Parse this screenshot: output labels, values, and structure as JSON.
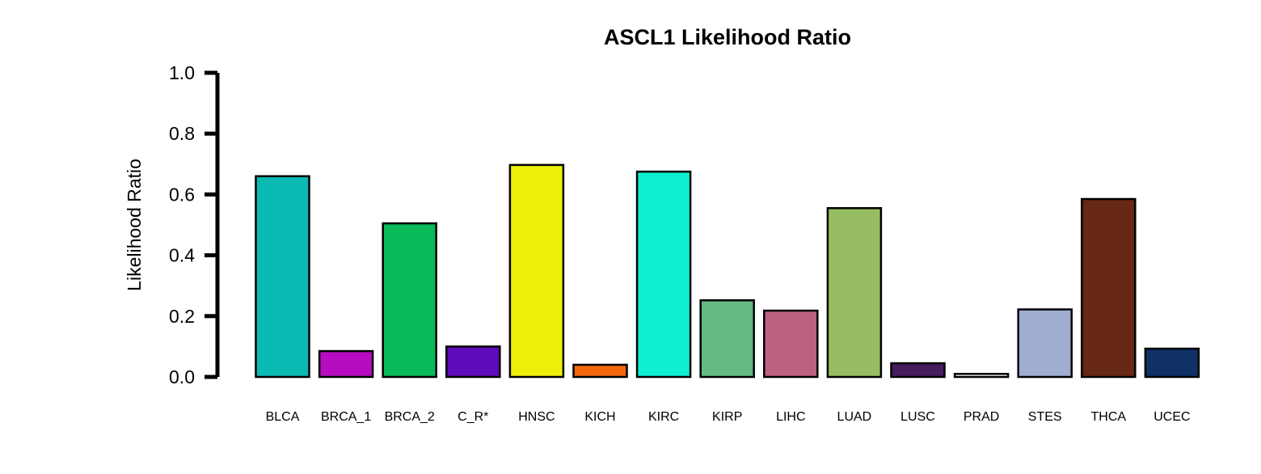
{
  "chart_data": {
    "type": "bar",
    "title": "ASCL1 Likelihood Ratio",
    "xlabel": "",
    "ylabel": "Likelihood Ratio",
    "ylim": [
      0,
      1
    ],
    "yticks": [
      "0.0",
      "0.2",
      "0.4",
      "0.6",
      "0.8",
      "1.0"
    ],
    "grid": false,
    "legend": "none",
    "categories": [
      "BLCA",
      "BRCA_1",
      "BRCA_2",
      "C_R*",
      "HNSC",
      "KICH",
      "KIRC",
      "KIRP",
      "LIHC",
      "LUAD",
      "LUSC",
      "PRAD",
      "STES",
      "THCA",
      "UCEC"
    ],
    "values": [
      0.66,
      0.085,
      0.505,
      0.1,
      0.697,
      0.04,
      0.675,
      0.252,
      0.218,
      0.555,
      0.045,
      0.01,
      0.222,
      0.585,
      0.093
    ],
    "colors": [
      "#0bbab3",
      "#b50dbf",
      "#09b95a",
      "#5e0cbb",
      "#eef00c",
      "#f4670f",
      "#0ef0d2",
      "#63ba82",
      "#bc6180",
      "#97bd62",
      "#461d5e",
      "#ffffff",
      "#9fadd1",
      "#662713",
      "#0f3165"
    ]
  }
}
